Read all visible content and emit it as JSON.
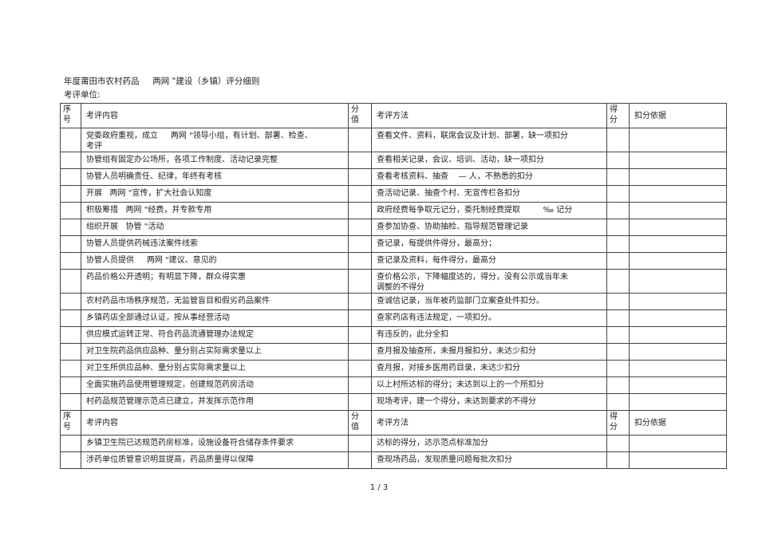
{
  "title": "年度莆田市农村药品     两网 \"建设（乡镇）评分细则",
  "unit_label": "考评单位:",
  "headers": {
    "seq": "序\n号",
    "content": "考评内容",
    "score": "分\n值",
    "method": "考评方法",
    "got": "得\n分",
    "basis": "扣分依据"
  },
  "table1_rows": [
    {
      "content": "党委政府重视，成立     两网 \"领导小组，有计划、部署、检查、\n考评",
      "method": "查看文件、资料，联席会议及计划、部署，缺一项扣分"
    },
    {
      "content": "协管组有固定办公场所，各项工作制度、活动记录完整",
      "method": "查看相关记录，会议、培训、活动，缺一项扣分"
    },
    {
      "content": "协管人员明确责任、纪律，年终有考核",
      "method": "查看考核资料、抽查    — 人，不熟悉的扣分"
    },
    {
      "content": "开展   两网 \"宣传，扩大社会认知度",
      "method": "查活动记录、抽查个村、无宣传栏各扣分"
    },
    {
      "content": "积极筹措   两网 \"经费，并专款专用",
      "method": "政府经费每争取元记分，委托制经费提取         ‰ 记分"
    },
    {
      "content": "组织开展   协管 \"活动",
      "method": "查参加协查、协助抽检、指导规范管理记录"
    },
    {
      "content": "协管人员提供药械违法案件线索",
      "method": "查记录，每提供件得分，最高分；"
    },
    {
      "content": "协管人员提供     两网 \"建议、意见的",
      "method": "查记录及资料，每件得分，最高分"
    },
    {
      "content": "药品价格公开透明；有明显下降，群众得实惠",
      "method": "查价格公示，下降幅度达的，得分，没有公示或当年未\n调整的不得分"
    },
    {
      "content": "农村药品市场秩序规范，无监管盲目和假劣药品案件",
      "method": "查诚信记录，当年被药监部门立案查处件扣分。"
    },
    {
      "content": "乡镇药店全部通过认证，按从事经营活动",
      "method": "查家药店有违法规定，一项扣分。"
    },
    {
      "content": "供应模式运转正常、符合药品流通管理办法规定",
      "method": "有违反的，此分全扣"
    },
    {
      "content": "对卫生院药品供应品种、量分别占实际需求量以上",
      "method": "查月报及抽查所，未报月报扣分，未达少扣分"
    },
    {
      "content": "对卫生所供应品种、量分别占实际需求量以上",
      "method": "查月报，对接乡医用药目录，未达少扣分"
    },
    {
      "content": "全面实施药品使用管理规定，创建规范药房活动",
      "method": "以上村所达标的得分；未达到以上的一个所扣分"
    },
    {
      "content": "村药品规范管理示范点已建立，并发挥示范作用",
      "method": "现场考评，建一个得分，未达到要求的不得分"
    }
  ],
  "table2_rows": [
    {
      "content": "乡镇卫生院已达规范药房标准，设施设备符合储存条件要求",
      "method": "达标的得分，达示范点标准加分"
    },
    {
      "content": "涉药单位质管意识明显提高，药品质量得以保障",
      "method": "查现场药品，发现质量问题每批次扣分"
    }
  ],
  "page_number": "1 / 3"
}
